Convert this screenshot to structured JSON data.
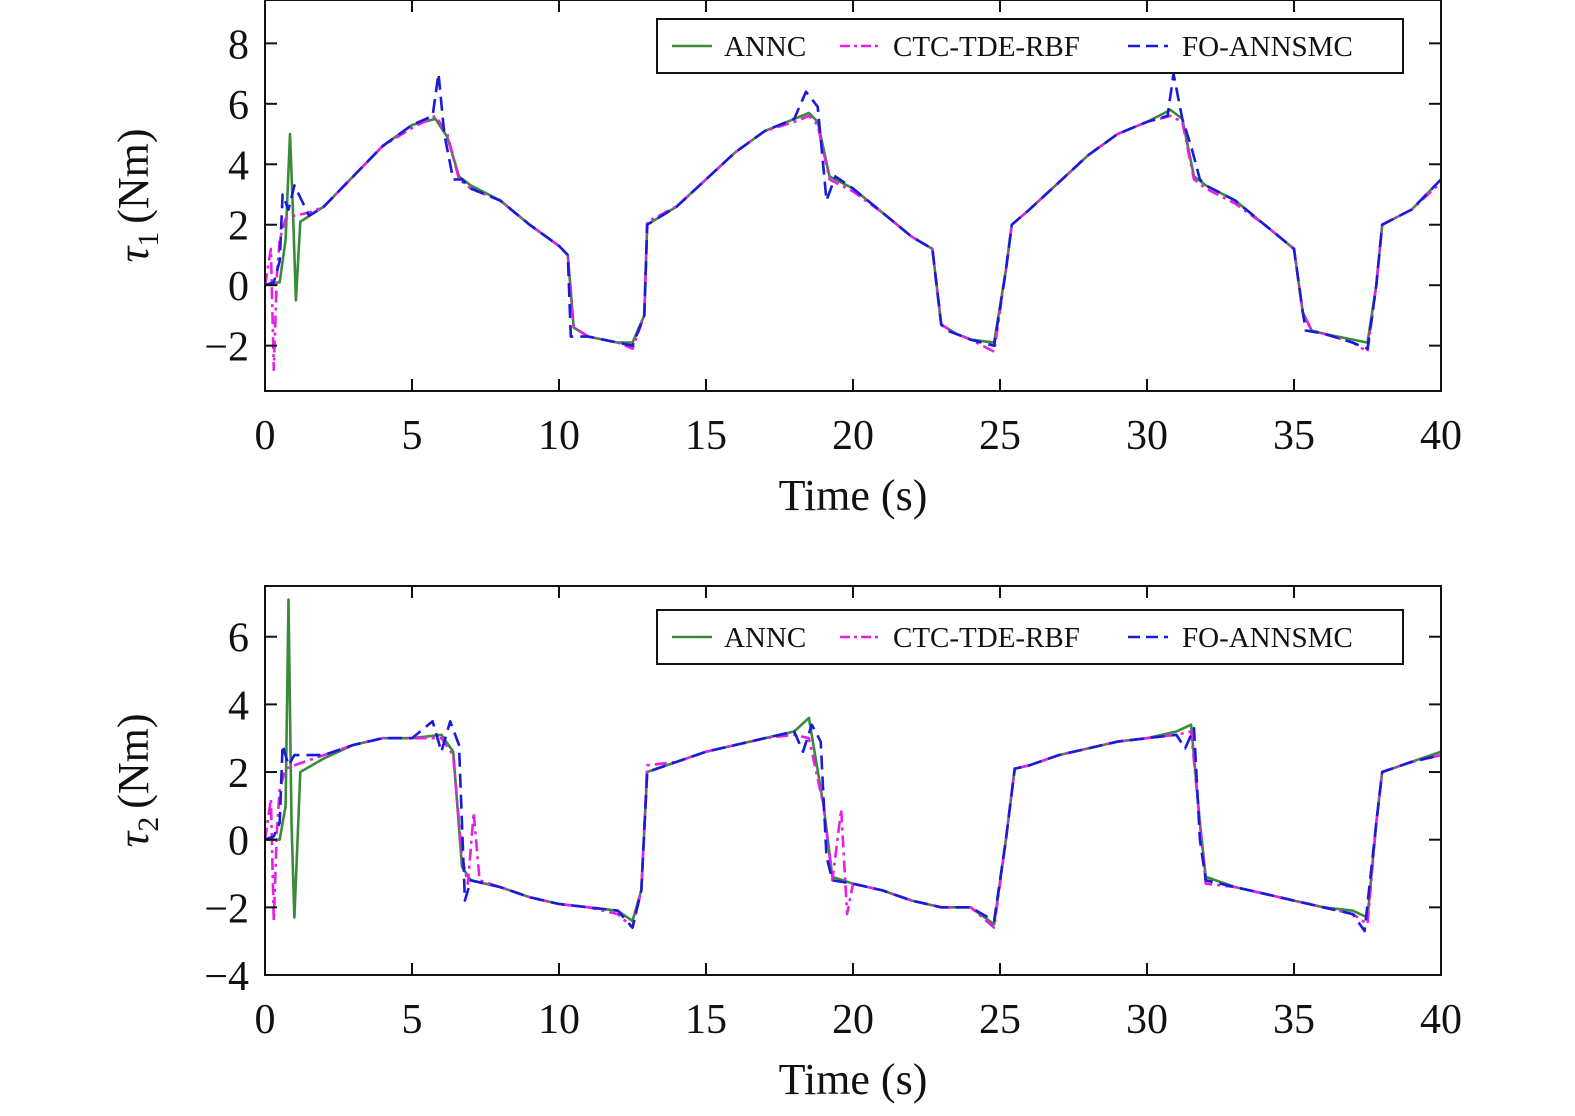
{
  "chart_data": [
    {
      "type": "line",
      "xlabel": "Time (s)",
      "ylabel_symbol": "τ",
      "ylabel_subscript": "1",
      "ylabel_unit": "(Nm)",
      "xlim": [
        0,
        40
      ],
      "ylim": [
        -3.5,
        9.5
      ],
      "xticks": [
        0,
        5,
        10,
        15,
        20,
        25,
        30,
        35,
        40
      ],
      "yticks": [
        -2,
        0,
        2,
        4,
        6,
        8
      ],
      "ytick_labels": [
        "−2",
        "0",
        "2",
        "4",
        "6",
        "8"
      ],
      "legend_position": "top-right",
      "grid": false,
      "series": [
        {
          "name": "ANNC",
          "color": "#3a8a3a",
          "style": "solid",
          "x": [
            0,
            0.5,
            0.7,
            0.85,
            0.95,
            1.05,
            1.2,
            2,
            3,
            4,
            5,
            5.8,
            6.2,
            6.6,
            7,
            8,
            9,
            10,
            10.3,
            10.5,
            11,
            12,
            12.5,
            12.9,
            13,
            14,
            15,
            16,
            17,
            18,
            18.5,
            18.8,
            19.2,
            20,
            21,
            22,
            22.7,
            23,
            23.5,
            24,
            24.8,
            25.2,
            25.4,
            26,
            27,
            28,
            29,
            30,
            30.8,
            31.2,
            31.6,
            32,
            33,
            34,
            35,
            35.3,
            35.6,
            36,
            37,
            37.5,
            37.8,
            38,
            39,
            40
          ],
          "y": [
            0,
            0.1,
            1.5,
            5.0,
            2.5,
            -0.5,
            2.1,
            2.6,
            3.6,
            4.6,
            5.3,
            5.5,
            4.9,
            3.6,
            3.3,
            2.8,
            2.0,
            1.3,
            1.0,
            -1.4,
            -1.7,
            -1.9,
            -1.9,
            -1.0,
            2.0,
            2.6,
            3.5,
            4.4,
            5.1,
            5.5,
            5.7,
            5.4,
            3.6,
            3.2,
            2.4,
            1.6,
            1.2,
            -1.3,
            -1.6,
            -1.8,
            -1.9,
            0.5,
            2.0,
            2.5,
            3.4,
            4.3,
            5.0,
            5.4,
            5.8,
            5.5,
            3.6,
            3.3,
            2.8,
            2.0,
            1.2,
            -0.9,
            -1.5,
            -1.6,
            -1.8,
            -1.9,
            0.0,
            2.0,
            2.5,
            3.5
          ]
        },
        {
          "name": "CTC-TDE-RBF",
          "color": "#e61ee6",
          "style": "dashdot",
          "x": [
            0,
            0.2,
            0.3,
            0.4,
            0.5,
            0.7,
            1.0,
            1.5,
            2,
            3,
            4,
            5,
            5.8,
            6.2,
            6.6,
            7,
            8,
            9,
            10,
            10.3,
            10.5,
            11,
            12,
            12.5,
            12.9,
            13,
            14,
            15,
            16,
            17,
            18,
            18.5,
            18.8,
            19.2,
            20,
            21,
            22,
            22.7,
            23,
            23.5,
            24,
            24.8,
            25.2,
            25.4,
            26,
            27,
            28,
            29,
            30,
            30.8,
            31.2,
            31.6,
            32,
            33,
            34,
            35,
            35.3,
            35.6,
            36,
            37,
            37.5,
            37.8,
            38,
            39,
            40
          ],
          "y": [
            0,
            1.2,
            -2.8,
            0.3,
            1.5,
            2.2,
            2.3,
            2.4,
            2.6,
            3.6,
            4.6,
            5.2,
            5.6,
            5.0,
            3.5,
            3.2,
            2.8,
            2.0,
            1.3,
            1.0,
            -1.4,
            -1.7,
            -1.9,
            -2.1,
            -1.0,
            2.1,
            2.6,
            3.5,
            4.4,
            5.1,
            5.4,
            5.6,
            5.3,
            3.5,
            3.1,
            2.4,
            1.6,
            1.2,
            -1.3,
            -1.6,
            -1.8,
            -2.2,
            0.5,
            2.0,
            2.5,
            3.4,
            4.3,
            5.0,
            5.4,
            5.6,
            5.4,
            3.5,
            3.2,
            2.7,
            2.0,
            1.2,
            -0.9,
            -1.5,
            -1.6,
            -1.9,
            -2.2,
            0.0,
            2.0,
            2.5,
            3.4
          ]
        },
        {
          "name": "FO-ANNSMC",
          "color": "#1a1ad9",
          "style": "dashed",
          "x": [
            0,
            0.3,
            0.5,
            0.6,
            0.8,
            1.0,
            1.5,
            2,
            3,
            4,
            5,
            5.7,
            5.9,
            6.1,
            6.4,
            6.7,
            7,
            8,
            9,
            10,
            10.3,
            10.4,
            11,
            12,
            12.5,
            12.9,
            13,
            14,
            15,
            16,
            17,
            18,
            18.4,
            18.8,
            19.1,
            19.4,
            20,
            21,
            22,
            22.7,
            23,
            23.2,
            24,
            24.8,
            25.2,
            25.4,
            26,
            27,
            28,
            29,
            30,
            30.7,
            30.9,
            31.2,
            31.5,
            31.8,
            32,
            33,
            34,
            35,
            35.3,
            35.4,
            36,
            37,
            37.5,
            37.8,
            38,
            39,
            40
          ],
          "y": [
            0,
            0.1,
            0.8,
            3.0,
            2.5,
            3.3,
            2.3,
            2.6,
            3.6,
            4.6,
            5.3,
            5.6,
            7.0,
            5.0,
            3.5,
            3.5,
            3.2,
            2.8,
            2.0,
            1.3,
            1.0,
            -1.7,
            -1.7,
            -1.9,
            -2.0,
            -1.0,
            2.0,
            2.6,
            3.5,
            4.4,
            5.1,
            5.5,
            6.4,
            5.9,
            2.8,
            3.6,
            3.2,
            2.4,
            1.6,
            1.2,
            -1.3,
            -1.5,
            -1.8,
            -2.0,
            0.5,
            2.0,
            2.5,
            3.4,
            4.3,
            5.0,
            5.4,
            5.6,
            7.0,
            5.5,
            4.6,
            3.5,
            3.3,
            2.8,
            2.0,
            1.2,
            -0.9,
            -1.5,
            -1.6,
            -1.9,
            -2.1,
            0.0,
            2.0,
            2.5,
            3.5
          ]
        }
      ]
    },
    {
      "type": "line",
      "xlabel": "Time (s)",
      "ylabel_symbol": "τ",
      "ylabel_subscript": "2",
      "ylabel_unit": "(Nm)",
      "xlim": [
        0,
        40
      ],
      "ylim": [
        -4,
        7.5
      ],
      "xticks": [
        0,
        5,
        10,
        15,
        20,
        25,
        30,
        35,
        40
      ],
      "yticks": [
        -4,
        -2,
        0,
        2,
        4,
        6
      ],
      "ytick_labels": [
        "−4",
        "−2",
        "0",
        "2",
        "4",
        "6"
      ],
      "legend_position": "top-right",
      "grid": false,
      "series": [
        {
          "name": "ANNC",
          "color": "#3a8a3a",
          "style": "solid",
          "x": [
            0,
            0.5,
            0.7,
            0.8,
            0.9,
            1.0,
            1.2,
            2,
            3,
            4,
            5,
            6,
            6.4,
            6.7,
            7,
            8,
            9,
            10,
            11,
            12,
            12.5,
            12.8,
            13,
            14,
            15,
            16,
            17,
            18,
            18.5,
            19.0,
            19.3,
            20,
            21,
            22,
            23,
            24,
            24.8,
            25.2,
            25.5,
            26,
            27,
            28,
            29,
            30,
            31,
            31.5,
            31.8,
            32,
            33,
            34,
            35,
            36,
            37,
            37.5,
            37.8,
            38,
            39,
            40
          ],
          "y": [
            0,
            0.0,
            1.0,
            7.1,
            0.5,
            -2.3,
            2.0,
            2.4,
            2.8,
            3.0,
            3.0,
            3.1,
            2.6,
            -0.8,
            -1.2,
            -1.4,
            -1.7,
            -1.9,
            -2.0,
            -2.1,
            -2.4,
            -1.5,
            2.0,
            2.3,
            2.6,
            2.8,
            3.0,
            3.2,
            3.6,
            1.0,
            -1.1,
            -1.3,
            -1.5,
            -1.8,
            -2.0,
            -2.0,
            -2.5,
            0.0,
            2.1,
            2.2,
            2.5,
            2.7,
            2.9,
            3.0,
            3.2,
            3.4,
            0.5,
            -1.1,
            -1.4,
            -1.6,
            -1.8,
            -2.0,
            -2.1,
            -2.3,
            0.5,
            2.0,
            2.3,
            2.6
          ]
        },
        {
          "name": "CTC-TDE-RBF",
          "color": "#e61ee6",
          "style": "dashdot",
          "x": [
            0,
            0.2,
            0.3,
            0.4,
            0.5,
            0.7,
            1.0,
            2,
            3,
            4,
            5,
            6,
            6.4,
            6.7,
            6.9,
            7.1,
            7.3,
            8,
            9,
            10,
            11,
            12,
            12.5,
            12.8,
            13,
            14,
            15,
            16,
            17,
            18,
            18.5,
            19.0,
            19.3,
            19.6,
            19.8,
            20,
            21,
            22,
            23,
            24,
            24.8,
            25.2,
            25.5,
            26,
            27,
            28,
            29,
            30,
            31,
            31.5,
            31.8,
            32,
            33,
            34,
            35,
            36,
            37,
            37.5,
            37.8,
            38,
            39,
            40
          ],
          "y": [
            0,
            1.2,
            -2.4,
            0.2,
            1.5,
            2.1,
            2.2,
            2.5,
            2.8,
            3.0,
            3.0,
            3.0,
            2.5,
            -0.5,
            -1.3,
            0.8,
            -1.2,
            -1.4,
            -1.7,
            -1.9,
            -2.0,
            -2.2,
            -2.6,
            -1.5,
            2.2,
            2.3,
            2.6,
            2.8,
            3.0,
            3.1,
            3.0,
            1.0,
            -1.2,
            0.9,
            -2.2,
            -1.3,
            -1.5,
            -1.8,
            -2.0,
            -2.0,
            -2.6,
            0.0,
            2.1,
            2.2,
            2.5,
            2.7,
            2.9,
            3.0,
            3.1,
            3.2,
            0.5,
            -1.3,
            -1.4,
            -1.6,
            -1.8,
            -2.0,
            -2.2,
            -2.5,
            0.5,
            2.0,
            2.3,
            2.5
          ]
        },
        {
          "name": "FO-ANNSMC",
          "color": "#1a1ad9",
          "style": "dashed",
          "x": [
            0,
            0.3,
            0.5,
            0.6,
            0.8,
            1.0,
            2,
            3,
            4,
            5,
            5.7,
            6.0,
            6.3,
            6.6,
            6.8,
            7,
            8,
            9,
            10,
            11,
            12,
            12.5,
            12.8,
            13,
            14,
            15,
            16,
            17,
            18,
            18.3,
            18.6,
            18.9,
            19.1,
            19.3,
            20,
            21,
            22,
            23,
            24,
            24.8,
            25.2,
            25.5,
            26,
            27,
            28,
            29,
            30,
            31,
            31.3,
            31.6,
            31.8,
            32,
            33,
            34,
            35,
            36,
            37,
            37.4,
            37.8,
            38,
            39,
            40
          ],
          "y": [
            0,
            0.1,
            0.5,
            2.8,
            2.2,
            2.5,
            2.5,
            2.8,
            3.0,
            3.0,
            3.5,
            2.6,
            3.5,
            2.8,
            -1.8,
            -1.2,
            -1.4,
            -1.7,
            -1.9,
            -2.0,
            -2.1,
            -2.6,
            -1.5,
            2.0,
            2.3,
            2.6,
            2.8,
            3.0,
            3.2,
            2.6,
            3.4,
            2.9,
            -0.5,
            -1.2,
            -1.3,
            -1.5,
            -1.8,
            -2.0,
            -2.0,
            -2.4,
            0.0,
            2.1,
            2.2,
            2.5,
            2.7,
            2.9,
            3.0,
            3.1,
            2.7,
            3.3,
            0.0,
            -1.2,
            -1.4,
            -1.6,
            -1.8,
            -2.0,
            -2.2,
            -2.7,
            0.5,
            2.0,
            2.3,
            2.5
          ]
        }
      ]
    }
  ]
}
